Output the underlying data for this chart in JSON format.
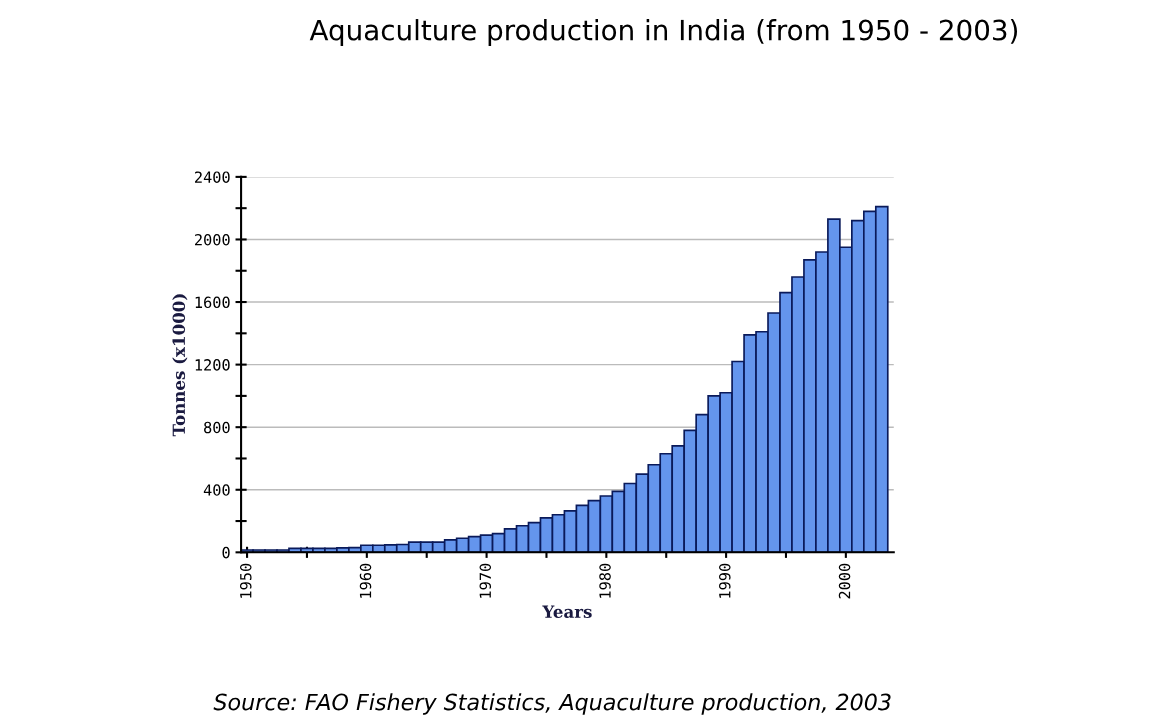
{
  "chart_data": {
    "type": "bar",
    "title": "Aquaculture production in India (from 1950 - 2003)",
    "xlabel": "Years",
    "ylabel": "Tonnes (x1000)",
    "x": [
      1950,
      1951,
      1952,
      1953,
      1954,
      1955,
      1956,
      1957,
      1958,
      1959,
      1960,
      1961,
      1962,
      1963,
      1964,
      1965,
      1966,
      1967,
      1968,
      1969,
      1970,
      1971,
      1972,
      1973,
      1974,
      1975,
      1976,
      1977,
      1978,
      1979,
      1980,
      1981,
      1982,
      1983,
      1984,
      1985,
      1986,
      1987,
      1988,
      1989,
      1990,
      1991,
      1992,
      1993,
      1994,
      1995,
      1996,
      1997,
      1998,
      1999,
      2000,
      2001,
      2002,
      2003
    ],
    "values": [
      15,
      15,
      15,
      15,
      25,
      25,
      25,
      25,
      28,
      30,
      45,
      45,
      48,
      50,
      65,
      65,
      65,
      80,
      90,
      100,
      110,
      120,
      150,
      170,
      190,
      220,
      240,
      265,
      300,
      330,
      360,
      390,
      440,
      500,
      560,
      630,
      680,
      780,
      880,
      1000,
      1020,
      1220,
      1390,
      1410,
      1530,
      1660,
      1760,
      1870,
      1920,
      2130,
      1950,
      2120,
      2180,
      2210
    ],
    "color": "#6495ed",
    "xlim": [
      1949.5,
      2004
    ],
    "xticks": [
      1950,
      {
        "value": 1955,
        "label": null
      },
      1960,
      {
        "value": 1965,
        "label": null
      },
      1970,
      {
        "value": 1975,
        "label": null
      },
      1980,
      {
        "value": 1985,
        "label": null
      },
      1990,
      {
        "value": 1995,
        "label": null
      },
      2000
    ],
    "ylim": [
      0,
      2400
    ],
    "yticks": [
      0,
      {
        "value": 200,
        "label": null
      },
      400,
      {
        "value": 600,
        "label": null
      },
      800,
      {
        "value": 1000,
        "label": null
      },
      1200,
      {
        "value": 1400,
        "label": null
      },
      1600,
      {
        "value": 1800,
        "label": null
      },
      2000,
      {
        "value": 2200,
        "label": null
      },
      2400
    ],
    "grid": "y",
    "annotations": [
      "Source: FAO Fishery Statistics, Aquaculture production, 2003"
    ]
  }
}
